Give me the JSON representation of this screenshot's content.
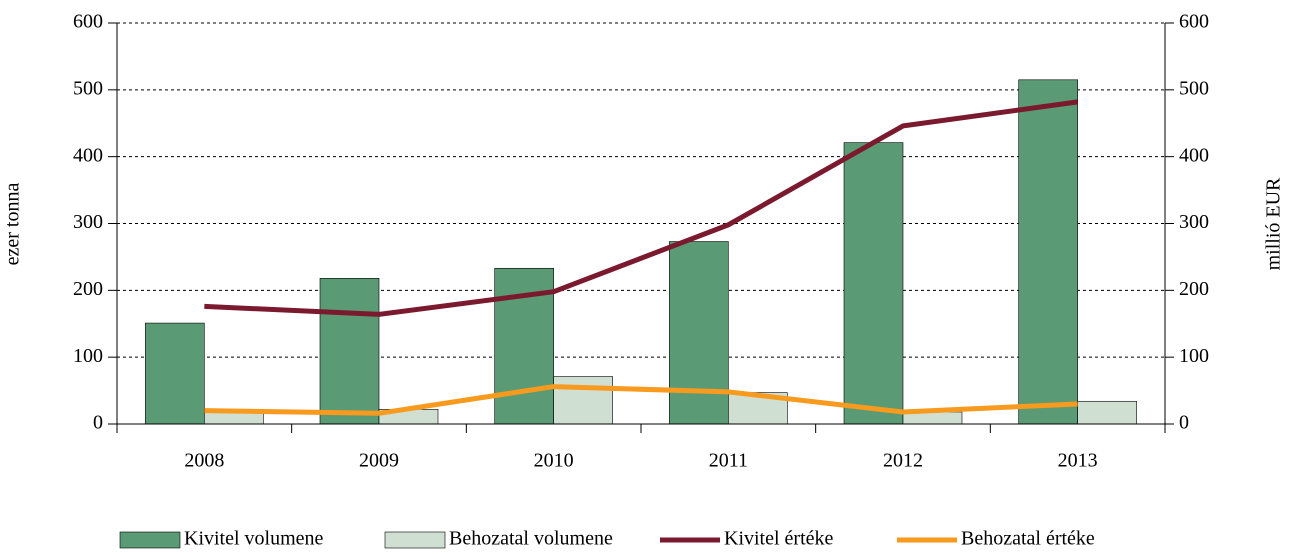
{
  "chart_data": {
    "type": "bar-line",
    "categories": [
      "2008",
      "2009",
      "2010",
      "2011",
      "2012",
      "2013"
    ],
    "ylabel": "ezer tonna",
    "y2label": "millió EUR",
    "ylim": [
      0,
      600
    ],
    "yticks": [
      0,
      100,
      200,
      300,
      400,
      500,
      600
    ],
    "y2lim": [
      0,
      600
    ],
    "y2ticks": [
      0,
      100,
      200,
      300,
      400,
      500,
      600
    ],
    "grid": true,
    "legend": "bottom",
    "series": [
      {
        "name": "Kivitel volumene",
        "type": "bar",
        "color": "#5a9a74",
        "values": [
          151,
          218,
          233,
          273,
          421,
          515
        ]
      },
      {
        "name": "Behozatal volumene",
        "type": "bar",
        "color": "#cfe0d2",
        "values": [
          18,
          22,
          71,
          47,
          18,
          34
        ]
      },
      {
        "name": "Kivitel értéke",
        "type": "line",
        "axis": "y2",
        "color": "#7b1a2e",
        "values": [
          176,
          164,
          198,
          298,
          446,
          482
        ]
      },
      {
        "name": "Behozatal értéke",
        "type": "line",
        "axis": "y2",
        "color": "#f79a1e",
        "values": [
          20,
          16,
          56,
          48,
          18,
          30
        ]
      }
    ]
  }
}
